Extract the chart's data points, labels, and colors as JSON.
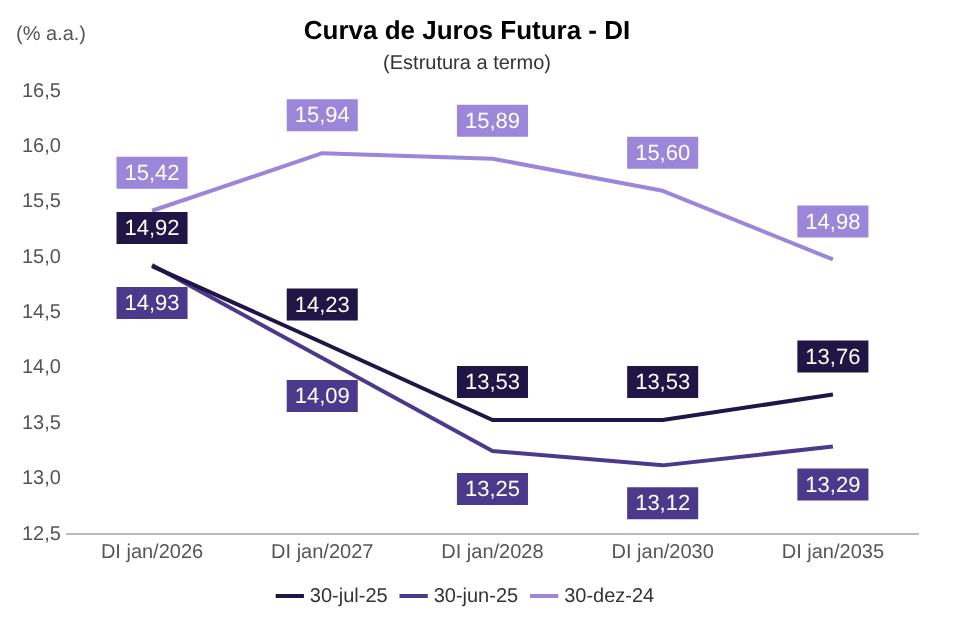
{
  "chart_data": {
    "type": "line",
    "title": "Curva de Juros Futura - DI",
    "subtitle": "(Estrutura a termo)",
    "ylabel": "(% a.a.)",
    "categories": [
      "DI jan/2026",
      "DI jan/2027",
      "DI jan/2028",
      "DI jan/2030",
      "DI jan/2035"
    ],
    "series": [
      {
        "name": "30-jul-25",
        "color": "#1f1646",
        "values": [
          14.92,
          14.23,
          13.53,
          13.53,
          13.76
        ],
        "value_labels": [
          "14,92",
          "14,23",
          "13,53",
          "13,53",
          "13,76"
        ]
      },
      {
        "name": "30-jun-25",
        "color": "#4b3a8c",
        "values": [
          14.93,
          14.09,
          13.25,
          13.12,
          13.29
        ],
        "value_labels": [
          "14,93",
          "14,09",
          "13,25",
          "13,12",
          "13,29"
        ]
      },
      {
        "name": "30-dez-24",
        "color": "#9b86d9",
        "values": [
          15.42,
          15.94,
          15.89,
          15.6,
          14.98
        ],
        "value_labels": [
          "15,42",
          "15,94",
          "15,89",
          "15,60",
          "14,98"
        ]
      }
    ],
    "ylim": [
      12.5,
      16.5
    ],
    "yticks": [
      {
        "value": 12.5,
        "label": "12,5"
      },
      {
        "value": 13,
        "label": "13,0"
      },
      {
        "value": 13.5,
        "label": "13,5"
      },
      {
        "value": 14,
        "label": "14,0"
      },
      {
        "value": 14.5,
        "label": "14,5"
      },
      {
        "value": 15,
        "label": "15,0"
      },
      {
        "value": 15.5,
        "label": "15,5"
      },
      {
        "value": 16,
        "label": "16,0"
      },
      {
        "value": 16.5,
        "label": "16,5"
      }
    ],
    "grid": false,
    "legend": "bottom",
    "marker": "none",
    "line_style": "solid"
  }
}
